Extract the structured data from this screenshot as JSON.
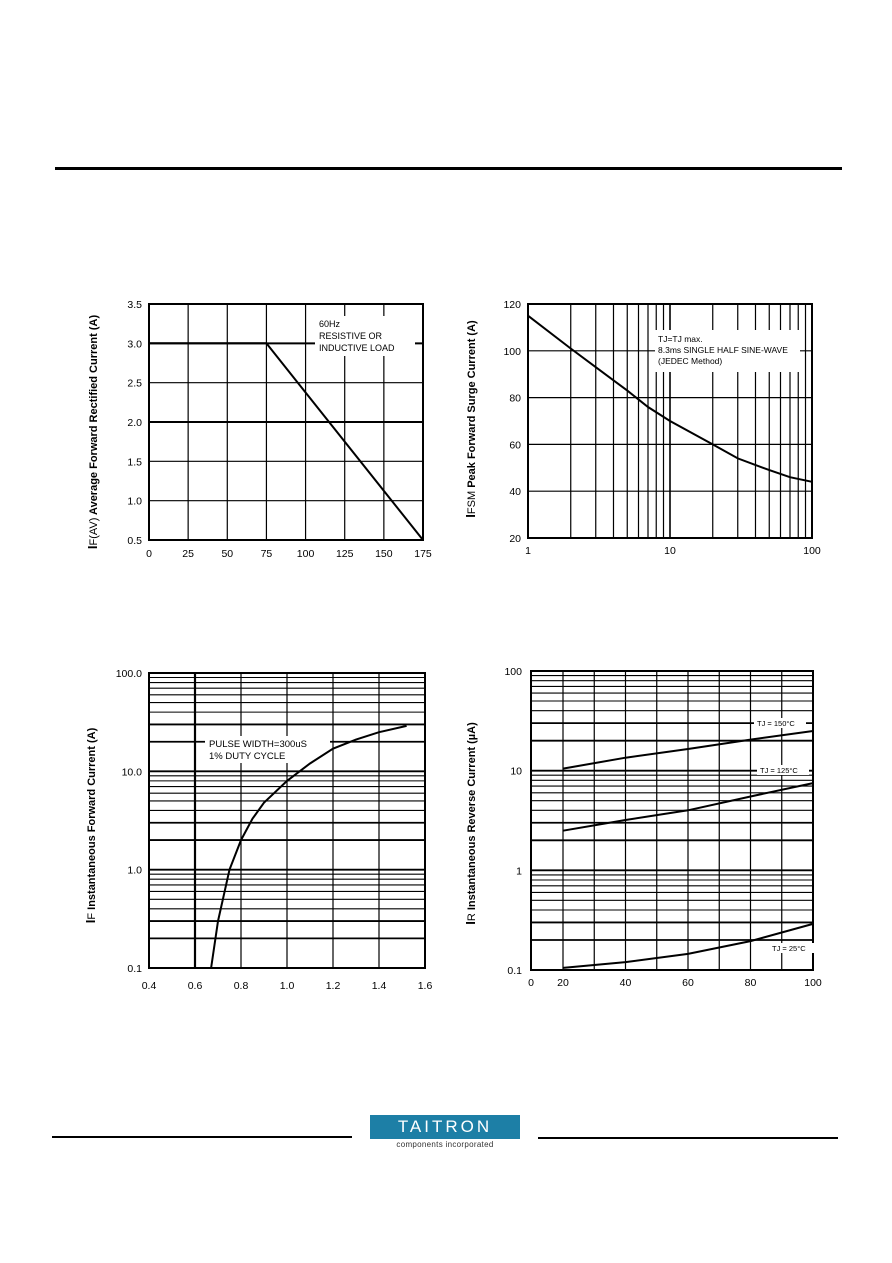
{
  "brand": {
    "name": "TAITRON",
    "tagline": "components incorporated",
    "color": "#1d7fa6"
  },
  "chart_data": [
    {
      "type": "line",
      "ylabel_main": "I",
      "ylabel_sub": "F(AV)",
      "ylabel_rest": " Average Forward Rectified Current (A)",
      "xlabel": "",
      "xlim": [
        0,
        175
      ],
      "ylim": [
        0.5,
        3.5
      ],
      "xticks": [
        0,
        25,
        50,
        75,
        100,
        125,
        150,
        175
      ],
      "xtick_labels": [
        "0",
        "25",
        "50",
        "75",
        "100",
        "125",
        "150",
        "175"
      ],
      "yticks": [
        0.5,
        1.0,
        1.5,
        2.0,
        2.5,
        3.0,
        3.5
      ],
      "ytick_labels": [
        "0.5",
        "1.0",
        "1.5",
        "2.0",
        "2.5",
        "3.0",
        "3.5"
      ],
      "annotations": [
        "60Hz",
        "RESISTIVE OR",
        "INDUCTIVE LOAD"
      ],
      "series": [
        {
          "x": [
            0,
            75,
            175
          ],
          "y": [
            3.0,
            3.0,
            0.5
          ]
        }
      ],
      "grid": true
    },
    {
      "type": "line",
      "x_scale": "log",
      "ylabel_main": "I",
      "ylabel_sub": "FSM",
      "ylabel_rest": " Peak Forward Surge Current  (A)",
      "xlabel": "",
      "xlim": [
        1,
        100
      ],
      "ylim": [
        20,
        120
      ],
      "xtick_labels": [
        "1",
        "10",
        "100"
      ],
      "xtick_values": [
        1,
        10,
        100
      ],
      "yticks": [
        20,
        40,
        60,
        80,
        100,
        120
      ],
      "ytick_labels": [
        "20",
        "40",
        "60",
        "80",
        "100",
        "120"
      ],
      "annotations": [
        "TJ=TJ max.",
        "8.3ms SINGLE HALF SINE-WAVE",
        "(JEDEC Method)"
      ],
      "series": [
        {
          "x": [
            1,
            2,
            3,
            5,
            7,
            10,
            20,
            30,
            50,
            70,
            100
          ],
          "y": [
            115,
            101,
            93,
            83,
            76,
            70,
            60,
            54,
            49,
            46,
            44
          ]
        }
      ],
      "grid": true
    },
    {
      "type": "line",
      "y_scale": "log",
      "ylabel_main": "I",
      "ylabel_sub": "F",
      "ylabel_rest": " Instantaneous Forward Current (A)",
      "xlabel": "",
      "xlim": [
        0.4,
        1.6
      ],
      "ylim": [
        0.1,
        100
      ],
      "xticks": [
        0.4,
        0.6,
        0.8,
        1.0,
        1.2,
        1.4,
        1.6
      ],
      "xtick_labels": [
        "0.4",
        "0.6",
        "0.8",
        "1.0",
        "1.2",
        "1.4",
        "1.6"
      ],
      "ytick_values": [
        0.1,
        1,
        10,
        100
      ],
      "ytick_labels": [
        "0.1",
        "1.0",
        "10.0",
        "100.0"
      ],
      "annotations": [
        "PULSE WIDTH=300uS",
        "1% DUTY CYCLE"
      ],
      "series": [
        {
          "x": [
            0.67,
            0.7,
            0.75,
            0.8,
            0.85,
            0.9,
            1.0,
            1.1,
            1.2,
            1.3,
            1.4,
            1.52
          ],
          "y": [
            0.1,
            0.3,
            1.0,
            2.0,
            3.3,
            4.8,
            8.0,
            12,
            17,
            21,
            25,
            29
          ]
        }
      ],
      "grid": true
    },
    {
      "type": "line",
      "y_scale": "log",
      "ylabel_main": "I",
      "ylabel_sub": "R",
      "ylabel_rest": " Instantaneous Reverse Current (µA)",
      "xlabel": "",
      "xlim": [
        0,
        100
      ],
      "ylim": [
        0.1,
        100
      ],
      "xtick_values": [
        0,
        20,
        40,
        60,
        80,
        100
      ],
      "xtick_labels": [
        "0",
        "20",
        "40",
        "60",
        "80",
        "100"
      ],
      "ytick_values": [
        0.1,
        1,
        10,
        100
      ],
      "ytick_labels": [
        "0.1",
        "1",
        "10",
        "100"
      ],
      "series": [
        {
          "name": "TJ = 150°C",
          "x": [
            20,
            40,
            60,
            80,
            100
          ],
          "y": [
            10.5,
            13.5,
            16.5,
            20.5,
            25
          ]
        },
        {
          "name": "TJ = 125°C",
          "x": [
            20,
            40,
            60,
            80,
            100
          ],
          "y": [
            2.5,
            3.2,
            4.0,
            5.5,
            7.5
          ]
        },
        {
          "name": "TJ = 25°C",
          "x": [
            20,
            40,
            60,
            80,
            100
          ],
          "y": [
            0.105,
            0.12,
            0.145,
            0.195,
            0.29
          ]
        }
      ],
      "grid": true
    }
  ]
}
